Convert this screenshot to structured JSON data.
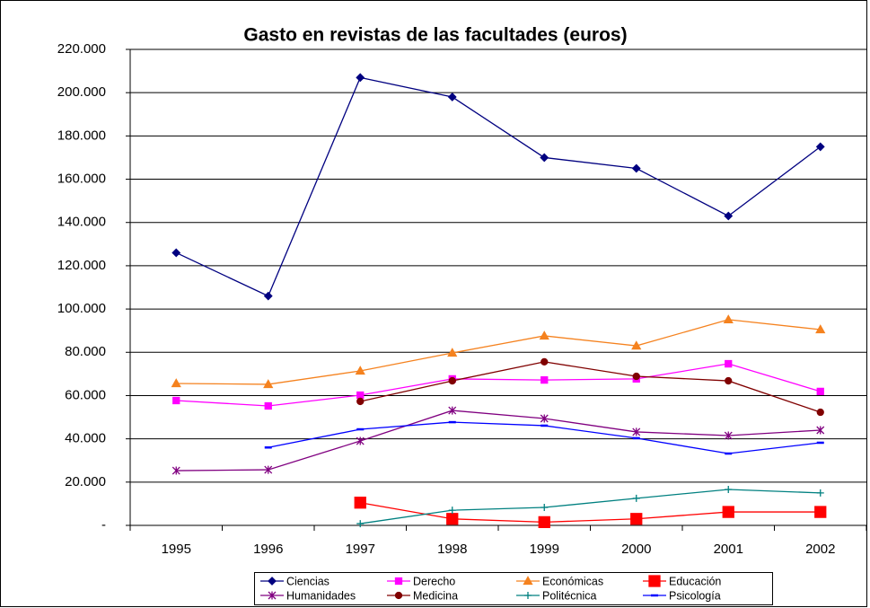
{
  "chart_data": {
    "type": "line",
    "title": "Gasto en revistas de las facultades (euros)",
    "categories": [
      "1995",
      "1996",
      "1997",
      "1998",
      "1999",
      "2000",
      "2001",
      "2002"
    ],
    "ylim": [
      0,
      220000
    ],
    "yticks": [
      {
        "value": 0,
        "label": "-"
      },
      {
        "value": 20000,
        "label": "20.000"
      },
      {
        "value": 40000,
        "label": "40.000"
      },
      {
        "value": 60000,
        "label": "60.000"
      },
      {
        "value": 80000,
        "label": "80.000"
      },
      {
        "value": 100000,
        "label": "100.000"
      },
      {
        "value": 120000,
        "label": "120.000"
      },
      {
        "value": 140000,
        "label": "140.000"
      },
      {
        "value": 160000,
        "label": "160.000"
      },
      {
        "value": 180000,
        "label": "180.000"
      },
      {
        "value": 200000,
        "label": "200.000"
      },
      {
        "value": 220000,
        "label": "220.000"
      }
    ],
    "grid": true,
    "legend": "bottom",
    "series": [
      {
        "name": "Ciencias",
        "color": "#000080",
        "marker": "diamond",
        "values": [
          126000,
          106000,
          207000,
          198000,
          170000,
          165000,
          143000,
          175000
        ]
      },
      {
        "name": "Derecho",
        "color": "#ff00ff",
        "marker": "square",
        "values": [
          57700,
          55200,
          60200,
          67700,
          67200,
          67700,
          74700,
          61900
        ]
      },
      {
        "name": "Económicas",
        "color": "#f5821f",
        "marker": "triangle",
        "values": [
          65600,
          65200,
          71400,
          79700,
          87600,
          83000,
          95100,
          90500
        ]
      },
      {
        "name": "Educación",
        "color": "#ff0000",
        "marker": "bigsquare",
        "values": [
          null,
          null,
          10500,
          3000,
          1500,
          3000,
          6200,
          6200
        ]
      },
      {
        "name": "Humanidades",
        "color": "#800080",
        "marker": "asterisk",
        "values": [
          25300,
          25700,
          39000,
          53100,
          49400,
          43200,
          41500,
          44000
        ]
      },
      {
        "name": "Medicina",
        "color": "#800000",
        "marker": "circle",
        "values": [
          null,
          null,
          57300,
          66800,
          75600,
          68900,
          66800,
          52300
        ]
      },
      {
        "name": "Politécnica",
        "color": "#008080",
        "marker": "plus",
        "values": [
          null,
          null,
          800,
          7000,
          8300,
          12500,
          16600,
          15000
        ]
      },
      {
        "name": "Psicología",
        "color": "#0000ff",
        "marker": "dash",
        "values": [
          null,
          36000,
          44400,
          47700,
          46100,
          40300,
          33200,
          38200
        ]
      }
    ]
  }
}
